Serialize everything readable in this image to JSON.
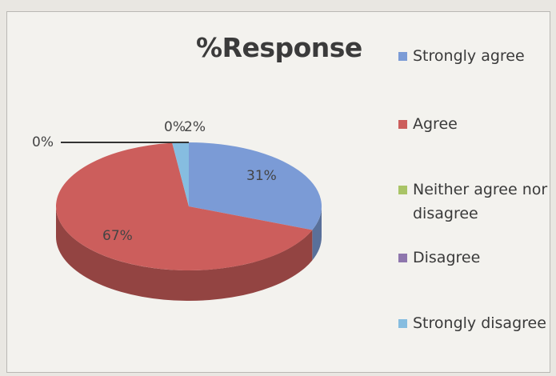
{
  "chart_data": {
    "type": "pie",
    "title": "%Response",
    "categories": [
      "Strongly agree",
      "Agree",
      "Neither agree nor disagree",
      "Disagree",
      "Strongly disagree"
    ],
    "values": [
      31,
      67,
      0,
      0,
      2
    ],
    "data_labels": [
      "31%",
      "67%",
      "0%",
      "0%",
      "2%"
    ],
    "colors": [
      "#7b9bd6",
      "#cc5e5c",
      "#a9c466",
      "#8e76ad",
      "#86bde0"
    ],
    "legend": {
      "placement": "right"
    },
    "style": "3d"
  }
}
